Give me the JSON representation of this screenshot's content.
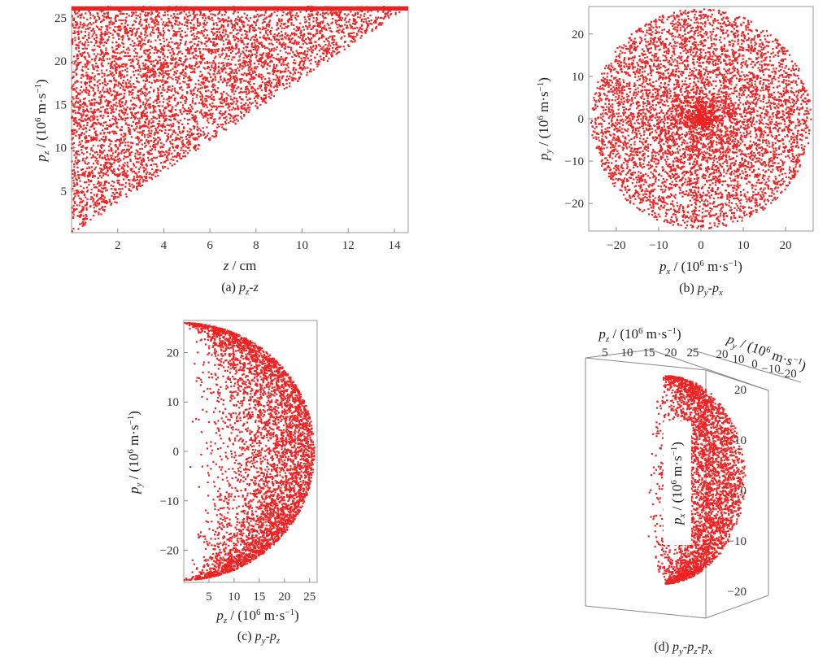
{
  "chart_data": [
    {
      "id": "a",
      "type": "scatter",
      "caption": {
        "prefix": "(a) ",
        "v1": "p",
        "s1": "z",
        "sep": "-",
        "v2": "z",
        "s2": ""
      },
      "xlabel": {
        "var": "z",
        "sub": "",
        "unit": " / cm"
      },
      "ylabel": {
        "var": "p",
        "sub": "z",
        "unit": " / (10",
        "exp": "6",
        "unit2": " m·s",
        "exp2": "−1",
        "close": ")"
      },
      "xlim": [
        0,
        14.6
      ],
      "ylim": [
        0.2,
        26.3
      ],
      "xticks": [
        2,
        4,
        6,
        8,
        10,
        12,
        14
      ],
      "yticks": [
        5,
        10,
        15,
        20,
        25
      ],
      "grid": false,
      "color": "#ee2222",
      "points_shown": "scatter filling the region p_z ≥ 1.8·z (triangle above the line from (0,0) to (14.6,26.3))"
    },
    {
      "id": "b",
      "type": "scatter",
      "caption": {
        "prefix": "(b) ",
        "v1": "p",
        "s1": "y",
        "sep": "-",
        "v2": "p",
        "s2": "x"
      },
      "xlabel": {
        "var": "p",
        "sub": "x",
        "unit": " / (10",
        "exp": "6",
        "unit2": " m·s",
        "exp2": "−1",
        "close": ")"
      },
      "ylabel": {
        "var": "p",
        "sub": "y",
        "unit": " / (10",
        "exp": "6",
        "unit2": " m·s",
        "exp2": "−1",
        "close": ")"
      },
      "xlim": [
        -26.5,
        26.5
      ],
      "ylim": [
        -26.5,
        26.5
      ],
      "xticks": [
        -20,
        -10,
        0,
        10,
        20
      ],
      "yticks": [
        -20,
        -10,
        0,
        10,
        20
      ],
      "grid": false,
      "color": "#ee2222",
      "points_shown": "disc of radius 26 centred at (0,0), denser at centre"
    },
    {
      "id": "c",
      "type": "scatter",
      "caption": {
        "prefix": "(c) ",
        "v1": "p",
        "s1": "y",
        "sep": "-",
        "v2": "p",
        "s2": "z"
      },
      "xlabel": {
        "var": "p",
        "sub": "z",
        "unit": " / (10",
        "exp": "6",
        "unit2": " m·s",
        "exp2": "−1",
        "close": ")"
      },
      "ylabel": {
        "var": "p",
        "sub": "y",
        "unit": " / (10",
        "exp": "6",
        "unit2": " m·s",
        "exp2": "−1",
        "close": ")"
      },
      "xlim": [
        0,
        26.5
      ],
      "ylim": [
        -26.5,
        26.5
      ],
      "xticks": [
        5,
        10,
        15,
        20,
        25
      ],
      "yticks": [
        -20,
        -10,
        0,
        10,
        20
      ],
      "grid": false,
      "color": "#ee2222",
      "points_shown": "half disc of radius 26 for p_z ≥ 0, denser near the arc"
    },
    {
      "id": "d",
      "type": "scatter",
      "caption": {
        "prefix": "(d) ",
        "v1": "p",
        "s1": "y",
        "sep": "-",
        "v2": "p",
        "s2": "z",
        "sep2": "-",
        "v3": "p",
        "s3": "x"
      },
      "axis_pz": {
        "var": "p",
        "sub": "z",
        "unit": " / (10",
        "exp": "6",
        "unit2": " m·s",
        "exp2": "−1",
        "close": ")",
        "ticks": [
          5,
          10,
          15,
          20,
          25
        ]
      },
      "axis_py": {
        "var": "p",
        "sub": "y",
        "unit": " / (10",
        "exp": "6",
        "unit2": " m·s",
        "exp2": "−1",
        "close": ")",
        "ticks": [
          20,
          10,
          0,
          -10,
          -20
        ]
      },
      "axis_px": {
        "var": "p",
        "sub": "x",
        "unit": " / (10",
        "exp": "6",
        "unit2": " m·s",
        "exp2": "−1",
        "close": ")",
        "ticks": [
          20,
          10,
          0,
          -10,
          -20
        ]
      },
      "grid": false,
      "color": "#ee2222",
      "points_shown": "3D view of the hemisphere p_z ≥ 0 of radius 26"
    }
  ]
}
